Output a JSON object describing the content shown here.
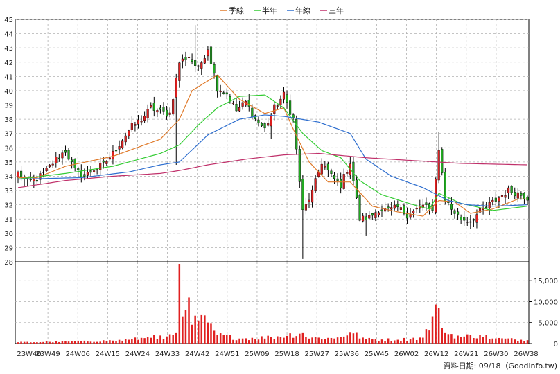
{
  "chart_data": {
    "type": "candlestick",
    "legend": [
      {
        "name": "季線",
        "color": "#e07a2a"
      },
      {
        "name": "半年",
        "color": "#33cc33"
      },
      {
        "name": "年線",
        "color": "#2f6fcf"
      },
      {
        "name": "三年",
        "color": "#c0306a"
      }
    ],
    "legend_position": "top-center",
    "colors": {
      "up": "#e02020",
      "down": "#22aa22",
      "wick": "#000000",
      "volume": "#e02020",
      "grid": "#b0b0b0"
    },
    "grid": true,
    "price_axis": {
      "min": 28,
      "max": 45,
      "ticks": [
        28,
        29,
        30,
        31,
        32,
        33,
        34,
        35,
        36,
        37,
        38,
        39,
        40,
        41,
        42,
        43,
        44,
        45
      ],
      "position": "left"
    },
    "volume_axis": {
      "min": 0,
      "max": 19500,
      "ticks": [
        0,
        5000,
        10000,
        15000
      ],
      "tick_labels": [
        "0",
        "5,000",
        "10,000",
        "15,000"
      ],
      "position": "right"
    },
    "x_axis": {
      "labels": [
        "23W40",
        "23W49",
        "24W06",
        "24W15",
        "24W24",
        "24W33",
        "24W42",
        "24W51",
        "25W09",
        "25W18",
        "25W27",
        "25W36",
        "25W45",
        "26W02",
        "26W12",
        "26W21",
        "26W30",
        "26W38"
      ]
    },
    "footer": "資料日期: 09/18（Goodinfo.tw)",
    "price_anchors": [
      [
        0,
        34.2
      ],
      [
        3,
        33.6
      ],
      [
        6,
        33.8
      ],
      [
        9,
        34.4
      ],
      [
        12,
        35.2
      ],
      [
        15,
        35.8
      ],
      [
        18,
        34.4
      ],
      [
        21,
        34.0
      ],
      [
        24,
        34.5
      ],
      [
        27,
        34.8
      ],
      [
        30,
        35.6
      ],
      [
        33,
        36.6
      ],
      [
        36,
        37.5
      ],
      [
        39,
        38.0
      ],
      [
        42,
        38.8
      ],
      [
        45,
        38.5
      ],
      [
        48,
        38.4
      ],
      [
        51,
        42.0
      ],
      [
        54,
        42.4
      ],
      [
        57,
        41.5
      ],
      [
        60,
        43.0
      ],
      [
        63,
        40.2
      ],
      [
        66,
        39.8
      ],
      [
        69,
        38.6
      ],
      [
        72,
        39.2
      ],
      [
        75,
        38.0
      ],
      [
        78,
        37.3
      ],
      [
        81,
        38.8
      ],
      [
        84,
        39.7
      ],
      [
        87,
        38.0
      ],
      [
        90,
        31.5
      ],
      [
        93,
        32.9
      ],
      [
        96,
        35.0
      ],
      [
        99,
        34.0
      ],
      [
        102,
        33.4
      ],
      [
        105,
        35.0
      ],
      [
        108,
        31.0
      ],
      [
        111,
        31.1
      ],
      [
        114,
        31.7
      ],
      [
        117,
        31.6
      ],
      [
        120,
        31.8
      ],
      [
        123,
        31.3
      ],
      [
        126,
        31.7
      ],
      [
        129,
        32.0
      ],
      [
        131,
        31.4
      ],
      [
        133,
        36.0
      ],
      [
        135,
        32.4
      ],
      [
        137,
        31.7
      ],
      [
        140,
        31.0
      ],
      [
        143,
        30.9
      ],
      [
        146,
        31.5
      ],
      [
        149,
        32.0
      ],
      [
        152,
        32.5
      ],
      [
        155,
        33.0
      ],
      [
        158,
        32.8
      ],
      [
        161,
        32.5
      ]
    ],
    "volume_anchors": [
      [
        0,
        300
      ],
      [
        10,
        400
      ],
      [
        20,
        500
      ],
      [
        30,
        700
      ],
      [
        35,
        900
      ],
      [
        40,
        1300
      ],
      [
        43,
        2000
      ],
      [
        46,
        1100
      ],
      [
        50,
        2500
      ],
      [
        51,
        19000
      ],
      [
        52,
        6500
      ],
      [
        53,
        8000
      ],
      [
        54,
        11000
      ],
      [
        55,
        4500
      ],
      [
        57,
        5500
      ],
      [
        60,
        5000
      ],
      [
        63,
        2000
      ],
      [
        70,
        1200
      ],
      [
        80,
        1500
      ],
      [
        90,
        2500
      ],
      [
        91,
        1500
      ],
      [
        100,
        1200
      ],
      [
        105,
        2600
      ],
      [
        110,
        1000
      ],
      [
        120,
        900
      ],
      [
        128,
        1400
      ],
      [
        133,
        8500
      ],
      [
        135,
        2500
      ],
      [
        140,
        1600
      ],
      [
        146,
        2000
      ],
      [
        150,
        1200
      ],
      [
        161,
        800
      ]
    ],
    "ma_anchors": {
      "季線": [
        [
          0,
          33.9
        ],
        [
          6,
          33.9
        ],
        [
          15,
          34.7
        ],
        [
          30,
          35.4
        ],
        [
          45,
          36.6
        ],
        [
          51,
          38.0
        ],
        [
          55,
          40.0
        ],
        [
          63,
          41.1
        ],
        [
          70,
          39.4
        ],
        [
          78,
          38.4
        ],
        [
          84,
          38.8
        ],
        [
          87,
          37.3
        ],
        [
          92,
          35.0
        ],
        [
          98,
          33.6
        ],
        [
          105,
          33.6
        ],
        [
          112,
          31.9
        ],
        [
          120,
          31.5
        ],
        [
          128,
          31.2
        ],
        [
          133,
          32.3
        ],
        [
          138,
          32.2
        ],
        [
          143,
          31.4
        ],
        [
          150,
          31.7
        ],
        [
          158,
          32.4
        ],
        [
          161,
          32.4
        ]
      ],
      "半年": [
        [
          0,
          33.8
        ],
        [
          15,
          34.2
        ],
        [
          30,
          34.7
        ],
        [
          45,
          35.6
        ],
        [
          51,
          36.2
        ],
        [
          57,
          37.6
        ],
        [
          63,
          38.8
        ],
        [
          70,
          39.6
        ],
        [
          78,
          39.7
        ],
        [
          84,
          38.8
        ],
        [
          90,
          37.0
        ],
        [
          96,
          35.8
        ],
        [
          102,
          35.3
        ],
        [
          108,
          33.7
        ],
        [
          115,
          32.7
        ],
        [
          125,
          32.0
        ],
        [
          130,
          31.7
        ],
        [
          133,
          32.8
        ],
        [
          140,
          32.1
        ],
        [
          150,
          31.6
        ],
        [
          161,
          31.9
        ]
      ],
      "年線": [
        [
          0,
          33.8
        ],
        [
          20,
          33.9
        ],
        [
          35,
          34.3
        ],
        [
          45,
          34.8
        ],
        [
          51,
          35.0
        ],
        [
          60,
          36.9
        ],
        [
          70,
          38.0
        ],
        [
          78,
          38.3
        ],
        [
          84,
          38.2
        ],
        [
          95,
          37.8
        ],
        [
          105,
          37.0
        ],
        [
          110,
          35.2
        ],
        [
          118,
          34.0
        ],
        [
          128,
          33.2
        ],
        [
          136,
          32.3
        ],
        [
          142,
          32.0
        ],
        [
          150,
          31.9
        ],
        [
          161,
          32.0
        ]
      ],
      "三年": [
        [
          0,
          33.2
        ],
        [
          15,
          33.7
        ],
        [
          30,
          34.0
        ],
        [
          45,
          34.2
        ],
        [
          51,
          34.4
        ],
        [
          60,
          34.8
        ],
        [
          72,
          35.2
        ],
        [
          84,
          35.5
        ],
        [
          95,
          35.6
        ],
        [
          110,
          35.3
        ],
        [
          125,
          35.1
        ],
        [
          140,
          34.9
        ],
        [
          161,
          34.8
        ]
      ]
    }
  }
}
